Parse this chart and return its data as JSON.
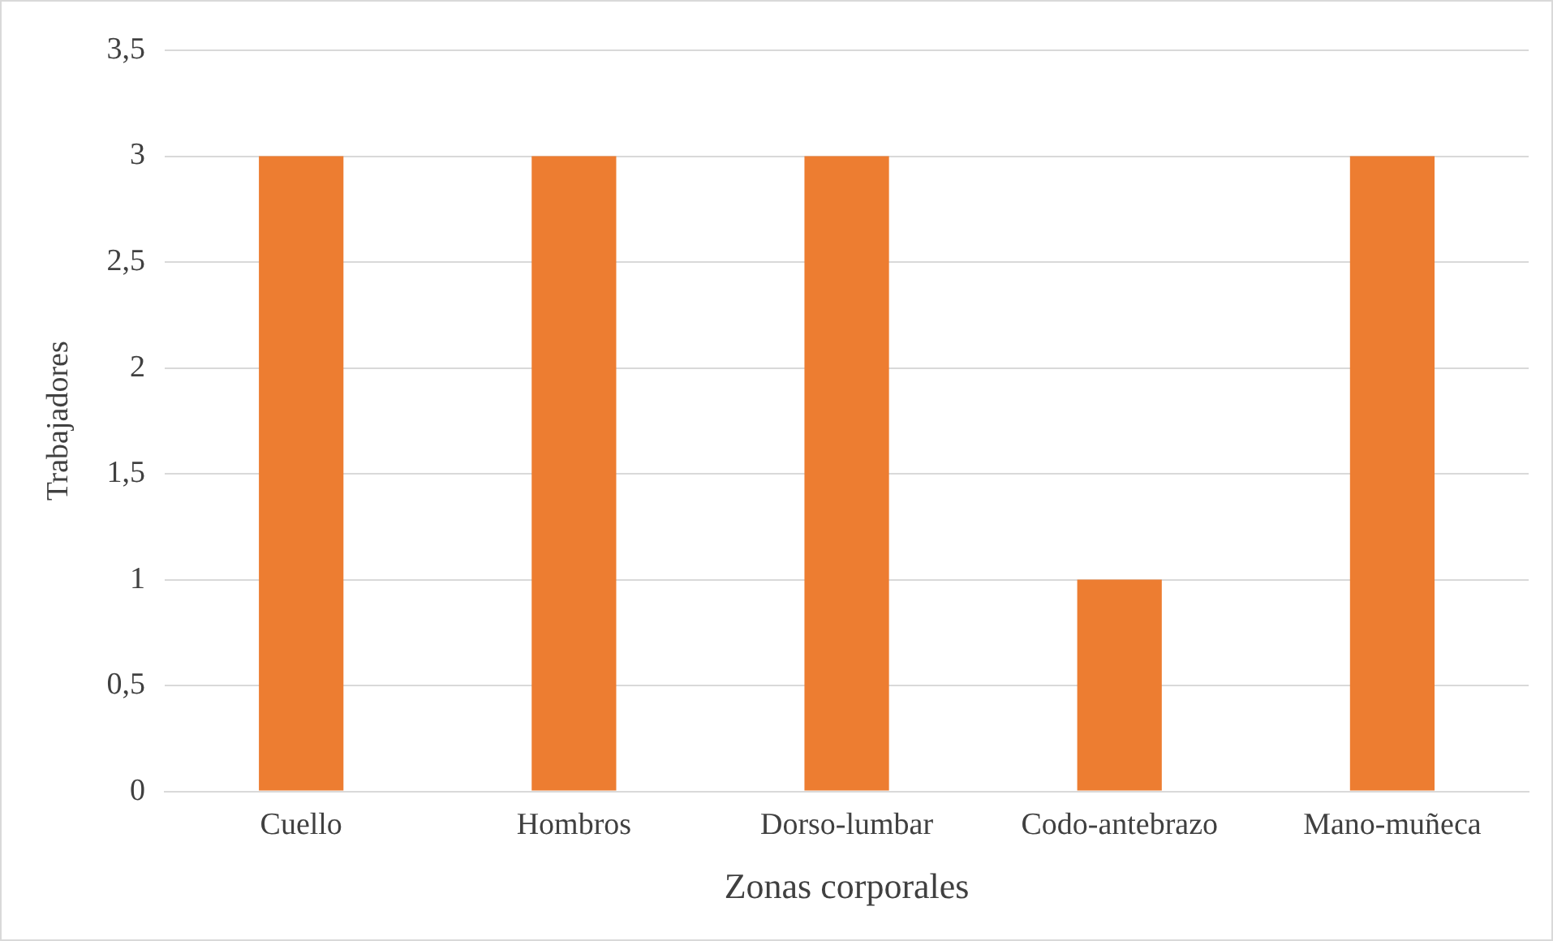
{
  "chart_data": {
    "type": "bar",
    "xlabel": "Zonas corporales",
    "ylabel": "Trabajadores",
    "categories": [
      "Cuello",
      "Hombros",
      "Dorso-lumbar",
      "Codo-antebrazo",
      "Mano-muñeca"
    ],
    "values": [
      3,
      3,
      3,
      1,
      3
    ],
    "color": "#ed7d31",
    "ylim": [
      0,
      3.5
    ],
    "yticks": [
      0,
      {
        "value": 0.5,
        "label": "0,5"
      },
      1,
      {
        "value": 1.5,
        "label": "1,5"
      },
      2,
      {
        "value": 2.5,
        "label": "2,5"
      },
      3,
      {
        "value": 3.5,
        "label": "3,5"
      }
    ],
    "grid": "y",
    "legend": false
  }
}
